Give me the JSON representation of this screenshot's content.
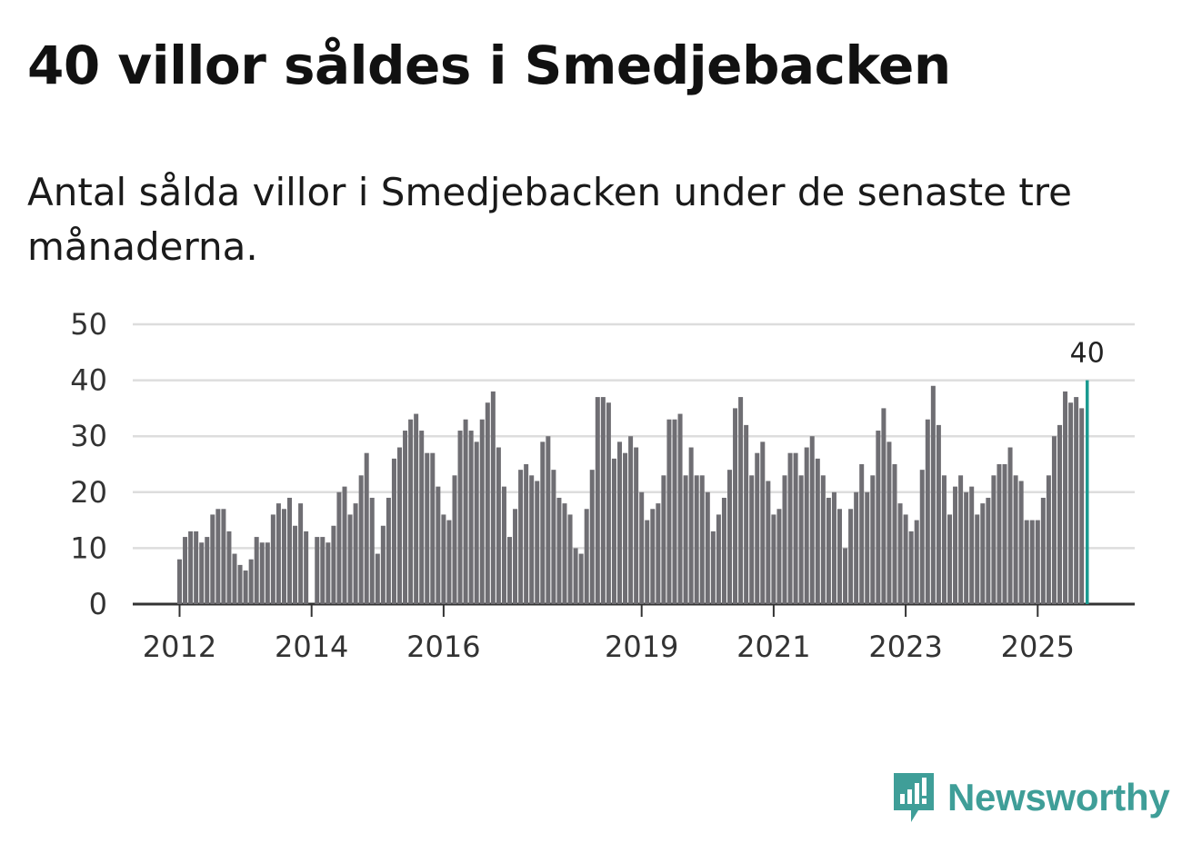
{
  "title": "40 villor såldes i Smedjebacken",
  "subtitle": "Antal sålda villor i Smedjebacken under de senaste tre månaderna.",
  "brand": {
    "name": "Newsworthy",
    "icon": "newsworthy-logo-icon",
    "color": "#3f9e98"
  },
  "colors": {
    "bar": "#6f6e73",
    "highlight": "#1a9a90",
    "grid": "#dddddd",
    "axis": "#333333"
  },
  "chart_data": {
    "type": "bar",
    "title": "Antal sålda villor i Smedjebacken under de senaste tre månaderna.",
    "xlabel": "",
    "ylabel": "",
    "ylim": [
      0,
      50
    ],
    "yticks": [
      "0",
      "10",
      "20",
      "30",
      "40",
      "50"
    ],
    "x_start": "2012-01",
    "xticks": [
      {
        "label": "2012",
        "index": 0
      },
      {
        "label": "2014",
        "index": 24
      },
      {
        "label": "2016",
        "index": 48
      },
      {
        "label": "2019",
        "index": 84
      },
      {
        "label": "2021",
        "index": 108
      },
      {
        "label": "2023",
        "index": 132
      },
      {
        "label": "2025",
        "index": 156
      }
    ],
    "values": [
      8,
      12,
      13,
      13,
      11,
      12,
      16,
      17,
      17,
      13,
      9,
      7,
      6,
      8,
      12,
      11,
      11,
      16,
      18,
      17,
      19,
      14,
      18,
      13,
      null,
      12,
      12,
      11,
      14,
      20,
      21,
      16,
      18,
      23,
      27,
      19,
      9,
      14,
      19,
      26,
      28,
      31,
      33,
      34,
      31,
      27,
      27,
      21,
      16,
      15,
      23,
      31,
      33,
      31,
      29,
      33,
      36,
      38,
      28,
      21,
      12,
      17,
      24,
      25,
      23,
      22,
      29,
      30,
      24,
      19,
      18,
      16,
      10,
      9,
      17,
      24,
      37,
      37,
      36,
      26,
      29,
      27,
      30,
      28,
      20,
      15,
      17,
      18,
      23,
      33,
      33,
      34,
      23,
      28,
      23,
      23,
      20,
      13,
      16,
      19,
      24,
      35,
      37,
      32,
      23,
      27,
      29,
      22,
      16,
      17,
      23,
      27,
      27,
      23,
      28,
      30,
      26,
      23,
      19,
      20,
      17,
      10,
      17,
      20,
      25,
      20,
      23,
      31,
      35,
      29,
      25,
      18,
      16,
      13,
      15,
      24,
      33,
      39,
      32,
      23,
      16,
      21,
      23,
      20,
      21,
      16,
      18,
      19,
      23,
      25,
      25,
      28,
      23,
      22,
      15,
      15,
      15,
      19,
      23,
      30,
      32,
      38,
      36,
      37,
      35,
      40
    ],
    "highlight_last": true,
    "last_label": "40"
  }
}
